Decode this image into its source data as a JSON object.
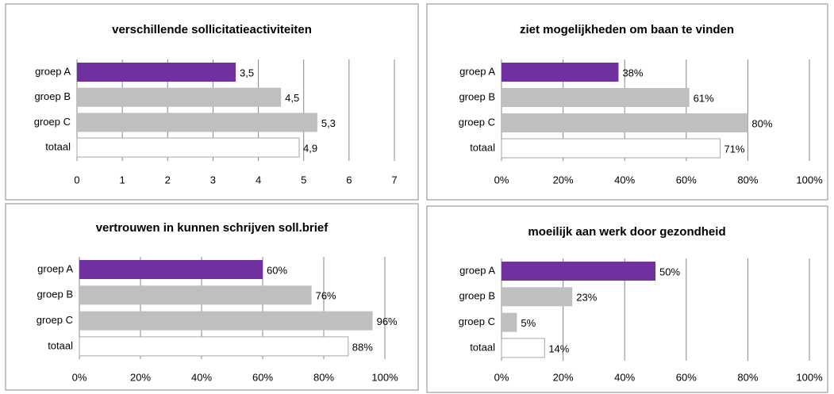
{
  "chart_data": [
    {
      "type": "bar",
      "orientation": "horizontal",
      "title": "verschillende sollicitatieactiviteiten",
      "categories": [
        "groep A",
        "groep B",
        "groep C",
        "totaal"
      ],
      "values": [
        3.5,
        4.5,
        5.3,
        4.9
      ],
      "value_labels": [
        "3,5",
        "4,5",
        "5,3",
        "4,9"
      ],
      "colors": [
        "#7030a0",
        "#bfbfbf",
        "#bfbfbf",
        "#ffffff"
      ],
      "xlim": [
        0,
        7
      ],
      "xticks": [
        0,
        1,
        2,
        3,
        4,
        5,
        6,
        7
      ],
      "grid": true
    },
    {
      "type": "bar",
      "orientation": "horizontal",
      "title": "ziet mogelijkheden om baan te vinden",
      "categories": [
        "groep A",
        "groep B",
        "groep C",
        "totaal"
      ],
      "values": [
        38,
        61,
        80,
        71
      ],
      "value_labels": [
        "38%",
        "61%",
        "80%",
        "71%"
      ],
      "colors": [
        "#7030a0",
        "#bfbfbf",
        "#bfbfbf",
        "#ffffff"
      ],
      "xlim": [
        0,
        100
      ],
      "xticks": [
        {
          "value": 0,
          "label": "0%"
        },
        {
          "value": 20,
          "label": "20%"
        },
        {
          "value": 40,
          "label": "40%"
        },
        {
          "value": 60,
          "label": "60%"
        },
        {
          "value": 80,
          "label": "80%"
        },
        {
          "value": 100,
          "label": "100%"
        }
      ],
      "grid": true
    },
    {
      "type": "bar",
      "orientation": "horizontal",
      "title": "vertrouwen in kunnen schrijven soll.brief",
      "categories": [
        "groep A",
        "groep B",
        "groep C",
        "totaal"
      ],
      "values": [
        60,
        76,
        96,
        88
      ],
      "value_labels": [
        "60%",
        "76%",
        "96%",
        "88%"
      ],
      "colors": [
        "#7030a0",
        "#bfbfbf",
        "#bfbfbf",
        "#ffffff"
      ],
      "xlim": [
        0,
        100
      ],
      "xticks": [
        {
          "value": 0,
          "label": "0%"
        },
        {
          "value": 20,
          "label": "20%"
        },
        {
          "value": 40,
          "label": "40%"
        },
        {
          "value": 60,
          "label": "60%"
        },
        {
          "value": 80,
          "label": "80%"
        },
        {
          "value": 100,
          "label": "100%"
        }
      ],
      "grid": true
    },
    {
      "type": "bar",
      "orientation": "horizontal",
      "title": "moeilijk aan werk door gezondheid",
      "categories": [
        "groep A",
        "groep B",
        "groep C",
        "totaal"
      ],
      "values": [
        50,
        23,
        5,
        14
      ],
      "value_labels": [
        "50%",
        "23%",
        "5%",
        "14%"
      ],
      "colors": [
        "#7030a0",
        "#bfbfbf",
        "#bfbfbf",
        "#ffffff"
      ],
      "xlim": [
        0,
        100
      ],
      "xticks": [
        {
          "value": 0,
          "label": "0%"
        },
        {
          "value": 20,
          "label": "20%"
        },
        {
          "value": 40,
          "label": "40%"
        },
        {
          "value": 60,
          "label": "60%"
        },
        {
          "value": 80,
          "label": "80%"
        },
        {
          "value": 100,
          "label": "100%"
        }
      ],
      "grid": true
    }
  ]
}
